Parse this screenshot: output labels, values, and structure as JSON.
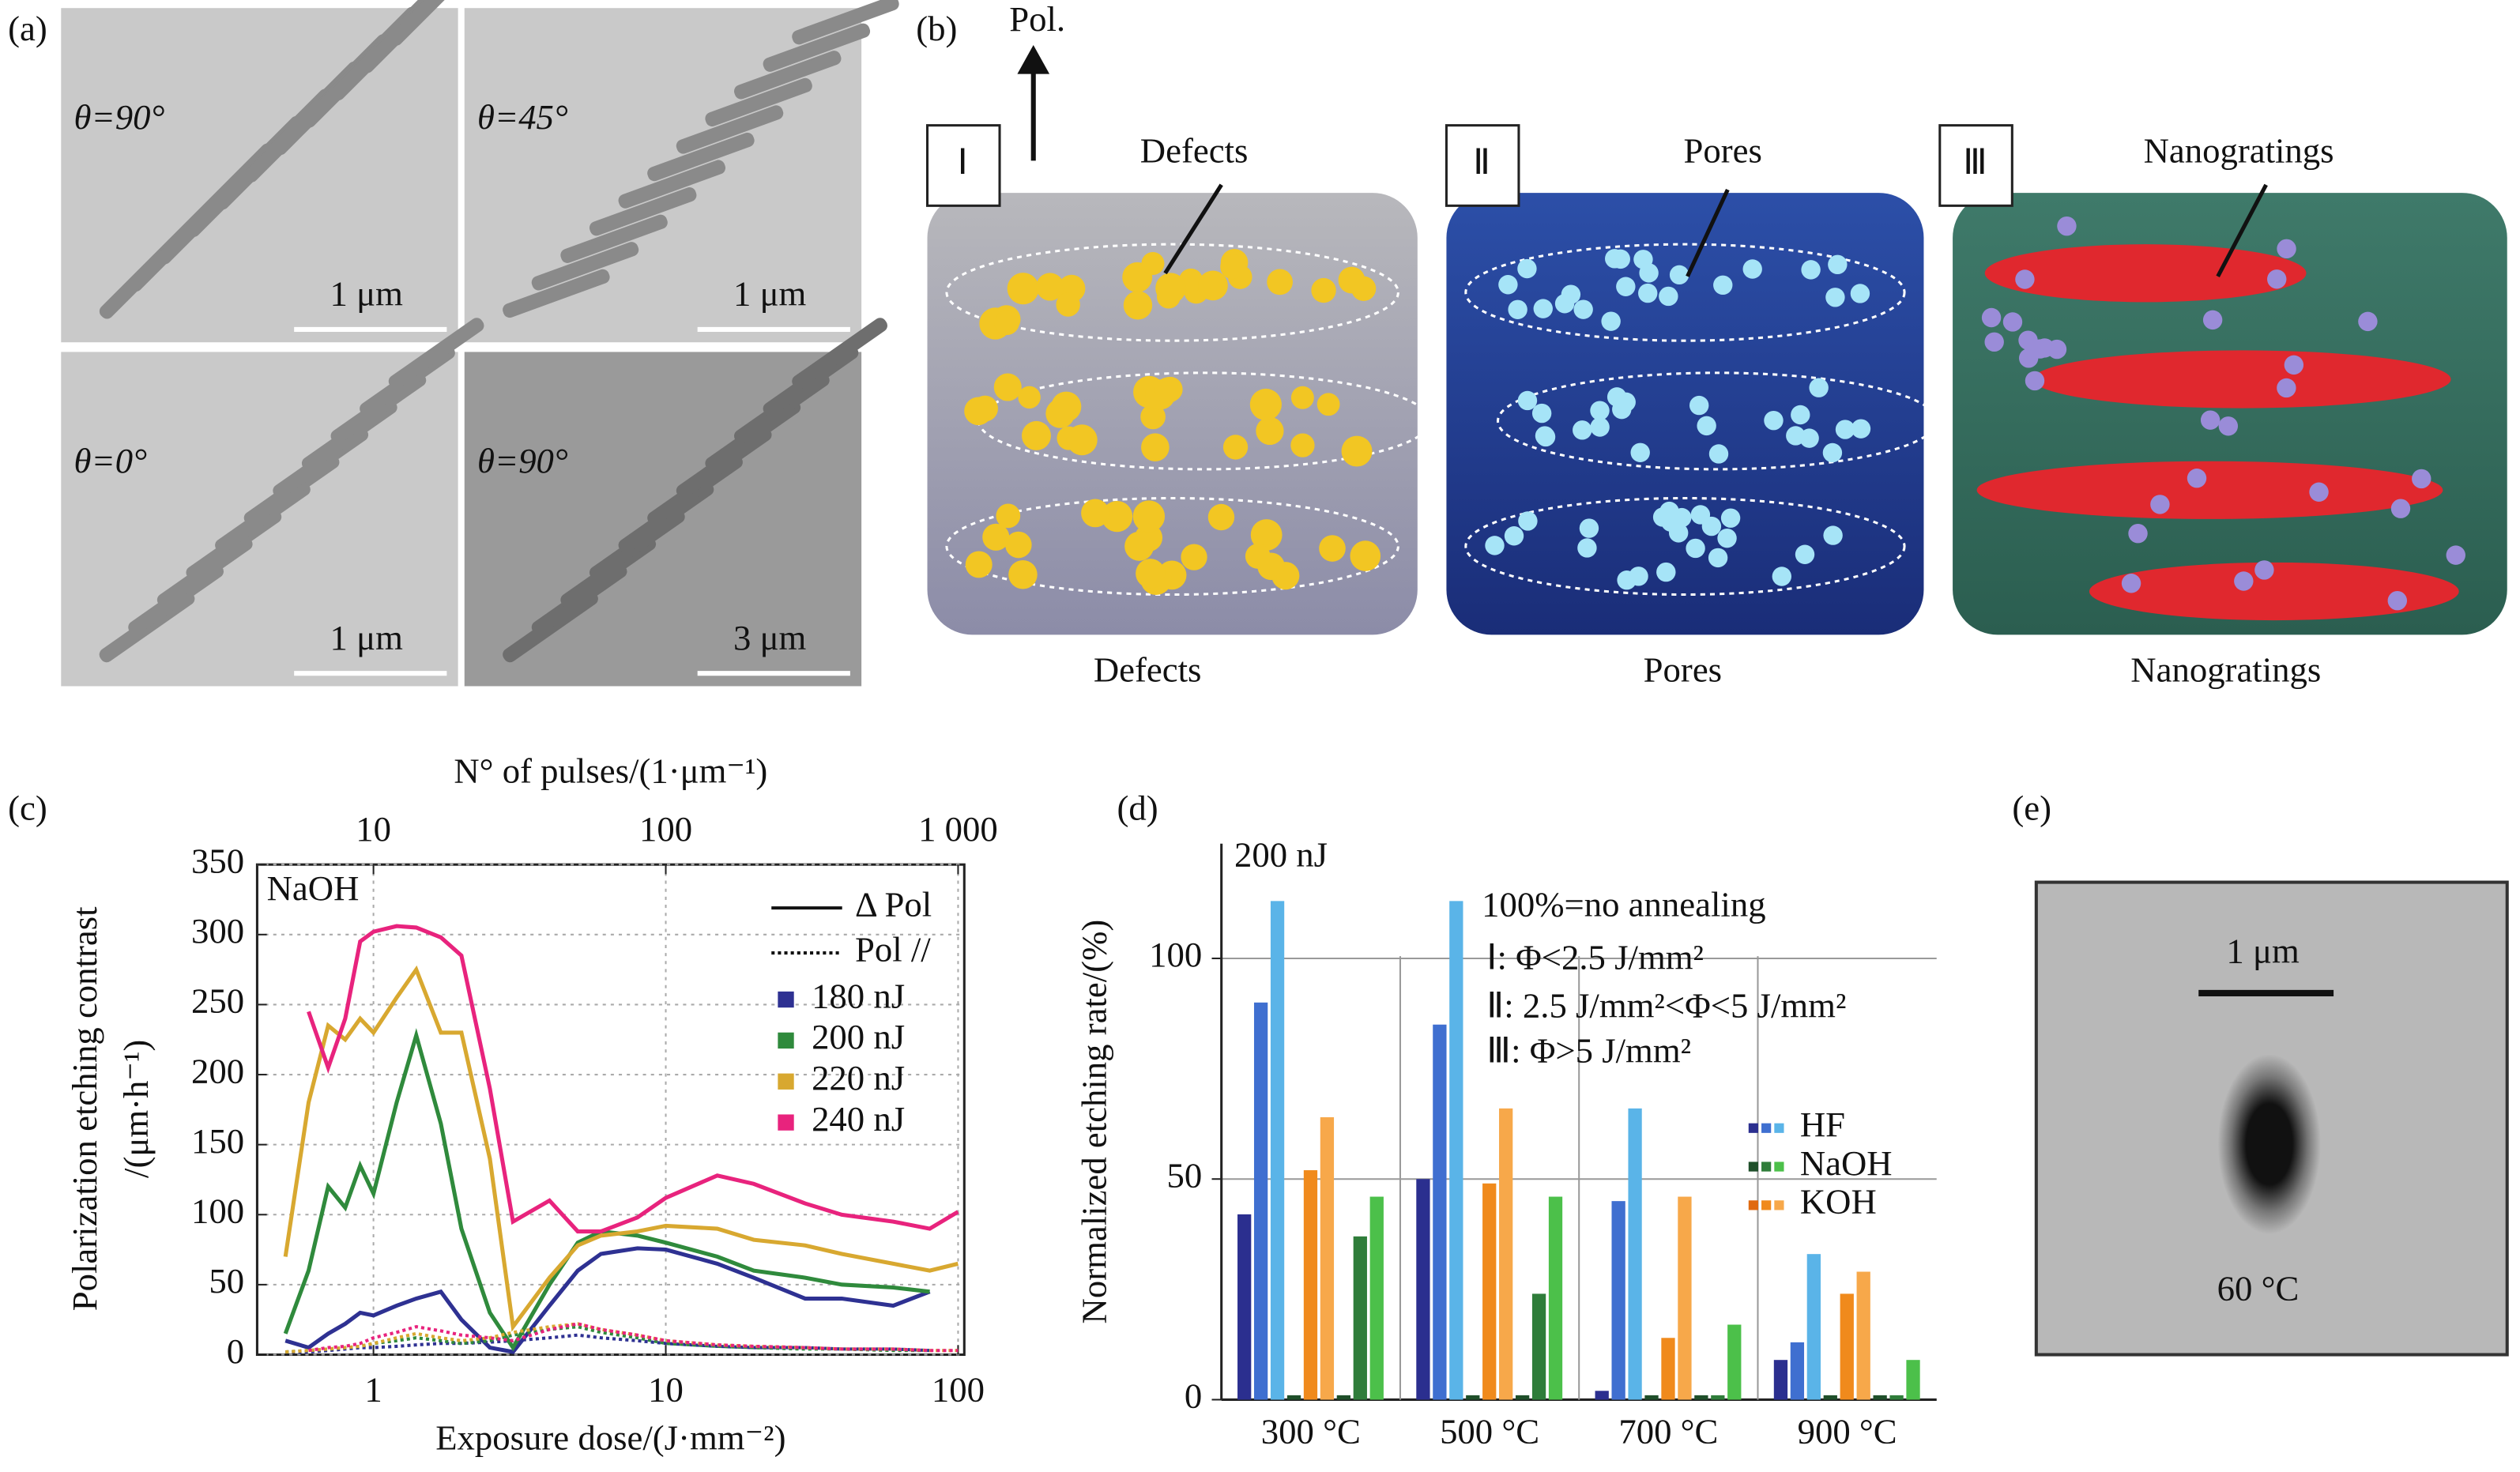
{
  "panel_labels": [
    "(a)",
    "(b)",
    "(c)",
    "(d)",
    "(e)"
  ],
  "sem": [
    {
      "angle": "θ=90°",
      "scale": "1 μm"
    },
    {
      "angle": "θ=45°",
      "scale": "1 μm"
    },
    {
      "angle": "θ=0°",
      "scale": "1 μm"
    },
    {
      "angle": "θ=90°",
      "scale": "3 μm"
    }
  ],
  "schematic": {
    "polarization": "Pol.",
    "stages": [
      {
        "numeral": "Ⅰ",
        "label": "Defects",
        "caption": "Defects"
      },
      {
        "numeral": "Ⅱ",
        "label": "Pores",
        "caption": "Pores"
      },
      {
        "numeral": "Ⅲ",
        "label": "Nanogratings",
        "caption": "Nanogratings"
      }
    ]
  },
  "chart_data": [
    {
      "type": "line",
      "xscale": "log",
      "grid": true,
      "x_label": "Exposure dose/(J·mm⁻²)",
      "x2_label": "N° of pulses/(1·μm⁻¹)",
      "y_label": [
        "Polarization etching contrast",
        "/(μm·h⁻¹)"
      ],
      "annotation": "NaOH",
      "xlim": [
        0.4,
        105
      ],
      "xticks": [
        1,
        10,
        100
      ],
      "x2lim": [
        4,
        1050
      ],
      "x2ticks": [
        10,
        100,
        {
          "value": 1000,
          "label": "1 000"
        }
      ],
      "ylim": [
        0,
        350
      ],
      "yticks": [
        0,
        50,
        100,
        150,
        200,
        250,
        300,
        350
      ],
      "line_styles": [
        {
          "name": "Δ Pol",
          "dash": "solid"
        },
        {
          "name": "Pol //",
          "dash": "dotted"
        }
      ],
      "x": [
        0.5,
        0.6,
        0.7,
        0.8,
        0.9,
        1,
        1.2,
        1.4,
        1.7,
        2,
        2.5,
        3,
        4,
        5,
        6,
        8,
        10,
        15,
        20,
        30,
        40,
        60,
        80,
        100
      ],
      "series": [
        {
          "name": "180 nJ",
          "color": "#2e3192",
          "values": [
            10,
            5,
            15,
            22,
            30,
            28,
            35,
            40,
            45,
            25,
            5,
            2,
            35,
            60,
            72,
            76,
            75,
            65,
            55,
            40,
            40,
            35,
            45,
            null
          ],
          "pol_values": [
            2,
            2,
            3,
            4,
            5,
            5,
            6,
            7,
            8,
            8,
            9,
            10,
            12,
            14,
            12,
            10,
            8,
            6,
            5,
            5,
            4,
            4,
            3,
            null
          ]
        },
        {
          "name": "200 nJ",
          "color": "#2f8a3c",
          "values": [
            15,
            60,
            120,
            105,
            135,
            115,
            180,
            228,
            165,
            90,
            30,
            5,
            50,
            80,
            88,
            85,
            80,
            70,
            60,
            55,
            50,
            48,
            45,
            null
          ],
          "pol_values": [
            2,
            3,
            4,
            5,
            6,
            8,
            10,
            12,
            10,
            8,
            10,
            14,
            18,
            20,
            16,
            12,
            8,
            6,
            5,
            4,
            4,
            3,
            3,
            null
          ]
        },
        {
          "name": "220 nJ",
          "color": "#d8a830",
          "values": [
            70,
            180,
            235,
            225,
            240,
            230,
            255,
            275,
            230,
            230,
            140,
            20,
            55,
            78,
            85,
            88,
            92,
            90,
            82,
            78,
            72,
            65,
            60,
            65
          ],
          "pol_values": [
            2,
            3,
            4,
            5,
            6,
            8,
            12,
            15,
            12,
            10,
            12,
            16,
            20,
            22,
            18,
            14,
            10,
            7,
            6,
            5,
            4,
            4,
            3,
            3
          ]
        },
        {
          "name": "240 nJ",
          "color": "#e8237d",
          "values": [
            null,
            245,
            205,
            240,
            295,
            302,
            306,
            305,
            298,
            285,
            190,
            95,
            110,
            88,
            88,
            98,
            112,
            128,
            122,
            108,
            100,
            95,
            90,
            102
          ],
          "pol_values": [
            null,
            3,
            5,
            6,
            8,
            12,
            16,
            20,
            17,
            14,
            12,
            10,
            18,
            22,
            18,
            14,
            10,
            7,
            6,
            5,
            4,
            4,
            3,
            3
          ]
        }
      ]
    },
    {
      "type": "bar",
      "y_label": "Normalized etching rate/(%)",
      "annotations": [
        "200 nJ",
        "100%=no annealing",
        "Ⅰ: Φ<2.5 J/mm²",
        "Ⅱ: 2.5 J/mm²<Φ<5 J/mm²",
        "Ⅲ: Φ>5 J/mm²"
      ],
      "categories": [
        "300 °C",
        "500 °C",
        "700 °C",
        "900 °C"
      ],
      "ylim": [
        0,
        126
      ],
      "yticks": [
        0,
        50,
        100
      ],
      "grid": true,
      "legend": [
        {
          "name": "HF",
          "colors": [
            "#2b2f8f",
            "#3f6fd0",
            "#5ab4e8"
          ]
        },
        {
          "name": "NaOH",
          "colors": [
            "#1f4f2a",
            "#2f7d3a",
            "#4cc04a"
          ]
        },
        {
          "name": "KOH",
          "colors": [
            "#e06a10",
            "#f08a1c",
            "#f7a84a"
          ]
        }
      ],
      "series": [
        {
          "color": "#2b2f8f",
          "values": [
            42,
            50,
            2,
            9
          ]
        },
        {
          "color": "#3f6fd0",
          "values": [
            90,
            85,
            45,
            13
          ]
        },
        {
          "color": "#5ab4e8",
          "values": [
            113,
            113,
            66,
            33
          ]
        },
        {
          "color": "#1f4f2a",
          "values": [
            1,
            1,
            1,
            1
          ]
        },
        {
          "color": "#f08a1c",
          "values": [
            52,
            49,
            14,
            24
          ]
        },
        {
          "color": "#f7a84a",
          "values": [
            64,
            66,
            46,
            29
          ]
        },
        {
          "color": "#1f4f2a",
          "values": [
            1,
            1,
            1,
            1
          ]
        },
        {
          "color": "#2f7d3a",
          "values": [
            37,
            24,
            1,
            1
          ]
        },
        {
          "color": "#4cc04a",
          "values": [
            46,
            46,
            17,
            9
          ]
        }
      ]
    }
  ],
  "micrograph": {
    "scale": "1 μm",
    "temperature": "60 °C"
  }
}
